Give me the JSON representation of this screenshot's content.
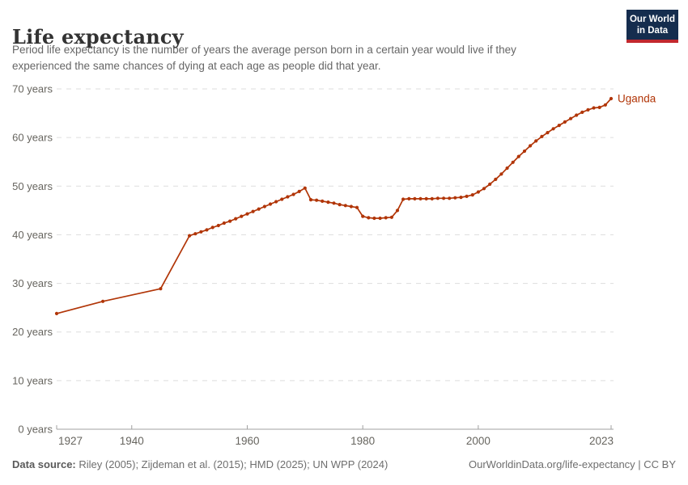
{
  "header": {
    "title": "Life expectancy",
    "subtitle_line1": "Period life expectancy is the number of years the average person born in a certain year would live if they",
    "subtitle_line2": "experienced the same chances of dying at each age as people did that year.",
    "logo": {
      "line1": "Our World",
      "line2": "in Data"
    }
  },
  "footer": {
    "source_label": "Data source:",
    "source_text": " Riley (2005); Zijdeman et al. (2015); HMD (2025); UN WPP (2024)",
    "license_text": "OurWorldinData.org/life-expectancy | CC BY"
  },
  "colors": {
    "line": "#b13507",
    "grid": "#dddddd",
    "axis": "#a0a0a0",
    "tick_label": "#67655f",
    "title": "#333333",
    "subtitle": "#666666",
    "footer": "#6e6e6e",
    "logo_bg": "#152d4e",
    "logo_accent": "#c2282e"
  },
  "chart_data": {
    "type": "line",
    "title": "Life expectancy",
    "xlabel": "",
    "ylabel": "",
    "y_unit": " years",
    "x_ticks": [
      1927,
      1940,
      1960,
      1980,
      2000,
      2023
    ],
    "y_ticks": [
      0,
      10,
      20,
      30,
      40,
      50,
      60,
      70
    ],
    "xlim": [
      1927,
      2023
    ],
    "ylim": [
      0,
      70
    ],
    "grid": "horizontal-dashed",
    "legend_position": "end-of-line",
    "series": [
      {
        "name": "Uganda",
        "color": "#b13507",
        "points": [
          [
            1927,
            23.8
          ],
          [
            1935,
            26.3
          ],
          [
            1945,
            28.9
          ],
          [
            1950,
            39.8
          ],
          [
            1951,
            40.2
          ],
          [
            1952,
            40.6
          ],
          [
            1953,
            41.0
          ],
          [
            1954,
            41.5
          ],
          [
            1955,
            41.9
          ],
          [
            1956,
            42.4
          ],
          [
            1957,
            42.8
          ],
          [
            1958,
            43.3
          ],
          [
            1959,
            43.8
          ],
          [
            1960,
            44.3
          ],
          [
            1961,
            44.8
          ],
          [
            1962,
            45.3
          ],
          [
            1963,
            45.8
          ],
          [
            1964,
            46.3
          ],
          [
            1965,
            46.8
          ],
          [
            1966,
            47.3
          ],
          [
            1967,
            47.8
          ],
          [
            1968,
            48.3
          ],
          [
            1969,
            48.9
          ],
          [
            1970,
            49.6
          ],
          [
            1971,
            47.2
          ],
          [
            1972,
            47.1
          ],
          [
            1973,
            46.9
          ],
          [
            1974,
            46.7
          ],
          [
            1975,
            46.5
          ],
          [
            1976,
            46.2
          ],
          [
            1977,
            46.0
          ],
          [
            1978,
            45.8
          ],
          [
            1979,
            45.6
          ],
          [
            1980,
            43.8
          ],
          [
            1981,
            43.5
          ],
          [
            1982,
            43.4
          ],
          [
            1983,
            43.4
          ],
          [
            1984,
            43.5
          ],
          [
            1985,
            43.6
          ],
          [
            1986,
            45.0
          ],
          [
            1987,
            47.3
          ],
          [
            1988,
            47.4
          ],
          [
            1989,
            47.4
          ],
          [
            1990,
            47.4
          ],
          [
            1991,
            47.4
          ],
          [
            1992,
            47.4
          ],
          [
            1993,
            47.5
          ],
          [
            1994,
            47.5
          ],
          [
            1995,
            47.5
          ],
          [
            1996,
            47.6
          ],
          [
            1997,
            47.7
          ],
          [
            1998,
            47.9
          ],
          [
            1999,
            48.2
          ],
          [
            2000,
            48.8
          ],
          [
            2001,
            49.5
          ],
          [
            2002,
            50.4
          ],
          [
            2003,
            51.4
          ],
          [
            2004,
            52.5
          ],
          [
            2005,
            53.7
          ],
          [
            2006,
            54.9
          ],
          [
            2007,
            56.1
          ],
          [
            2008,
            57.2
          ],
          [
            2009,
            58.3
          ],
          [
            2010,
            59.3
          ],
          [
            2011,
            60.2
          ],
          [
            2012,
            61.0
          ],
          [
            2013,
            61.8
          ],
          [
            2014,
            62.5
          ],
          [
            2015,
            63.2
          ],
          [
            2016,
            63.9
          ],
          [
            2017,
            64.6
          ],
          [
            2018,
            65.2
          ],
          [
            2019,
            65.7
          ],
          [
            2020,
            66.1
          ],
          [
            2021,
            66.2
          ],
          [
            2022,
            66.7
          ],
          [
            2023,
            68.0
          ]
        ]
      }
    ]
  }
}
